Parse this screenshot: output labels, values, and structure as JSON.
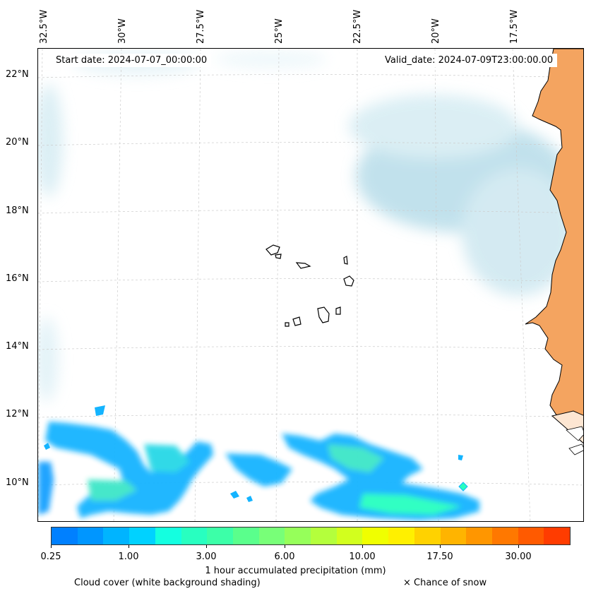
{
  "map": {
    "start_date": "Start date: 2024-07-07_00:00:00",
    "valid_date": "Valid_date: 2024-07-09T23:00:00.00",
    "lon_labels": [
      "32.5°W",
      "30°W",
      "27.5°W",
      "25°W",
      "22.5°W",
      "20°W",
      "17.5°W"
    ],
    "lat_labels": [
      "22°N",
      "20°N",
      "18°N",
      "16°N",
      "14°N",
      "12°N",
      "10°N"
    ],
    "land_color": "#f4a460",
    "cloud_color": "#add8e6"
  },
  "legend": {
    "tick_labels": [
      "0.25",
      "1.00",
      "3.00",
      "6.00",
      "10.00",
      "17.50",
      "30.00"
    ],
    "colorbar_label": "1 hour accumulated precipitation (mm)",
    "cloud_note": "Cloud cover (white background shading)",
    "snow_note": "× Chance of snow",
    "colors": [
      "#0080ff",
      "#0096ff",
      "#00b4ff",
      "#00d2ff",
      "#14ffe0",
      "#28ffc0",
      "#3cffa8",
      "#5aff8c",
      "#78ff78",
      "#96ff5a",
      "#b4ff3c",
      "#d2ff1e",
      "#f0ff00",
      "#fff000",
      "#ffd200",
      "#ffb400",
      "#ff9600",
      "#ff7800",
      "#ff5a00",
      "#ff3c00"
    ]
  }
}
